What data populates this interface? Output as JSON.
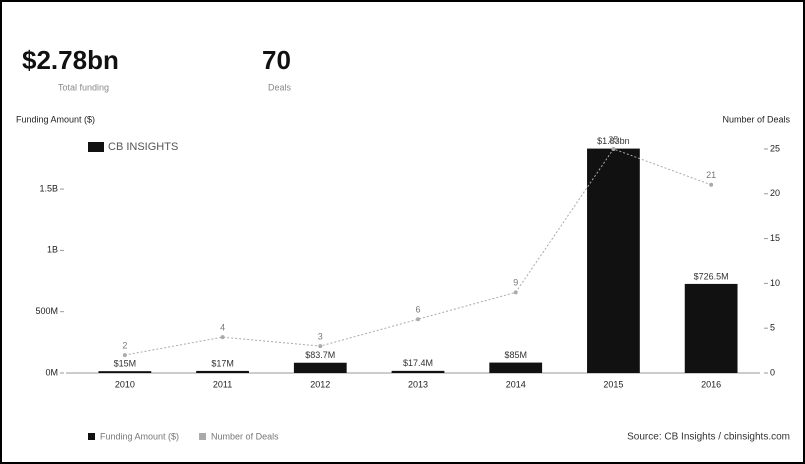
{
  "header": {
    "total": "$2.78bn",
    "total_label": "Total funding",
    "deals": "70",
    "deals_label": "Deals",
    "logo": "CB INSIGHTS"
  },
  "chart_data": {
    "type": "bar-line",
    "y_label": "Funding Amount ($)",
    "y2_label": "Number of Deals",
    "categories": [
      "2010",
      "2011",
      "2012",
      "2013",
      "2014",
      "2015",
      "2016"
    ],
    "series": [
      {
        "name": "Funding Amount ($)",
        "color": "#111111",
        "values": [
          15,
          17,
          83.7,
          17.4,
          85,
          1830,
          726.5
        ],
        "value_labels": [
          "$15M",
          "$17M",
          "$83.7M",
          "$17.4M",
          "$85M",
          "$1.83bn",
          "$726.5M"
        ]
      },
      {
        "name": "Number of Deals",
        "color": "#aaaaaa",
        "axis": "y2",
        "values": [
          2,
          4,
          3,
          6,
          9,
          25,
          21
        ]
      }
    ],
    "ylim": [
      0,
      1900
    ],
    "yticks": [
      {
        "value": 0,
        "label": "0M"
      },
      {
        "value": 500,
        "label": "500M"
      },
      {
        "value": 1000,
        "label": "1B"
      },
      {
        "value": 1500,
        "label": "1.5B"
      }
    ],
    "y2lim": [
      0,
      26
    ],
    "y2ticks": [
      0,
      5,
      10,
      15,
      20,
      25
    ],
    "source": "Source: CB Insights / cbinsights.com"
  }
}
